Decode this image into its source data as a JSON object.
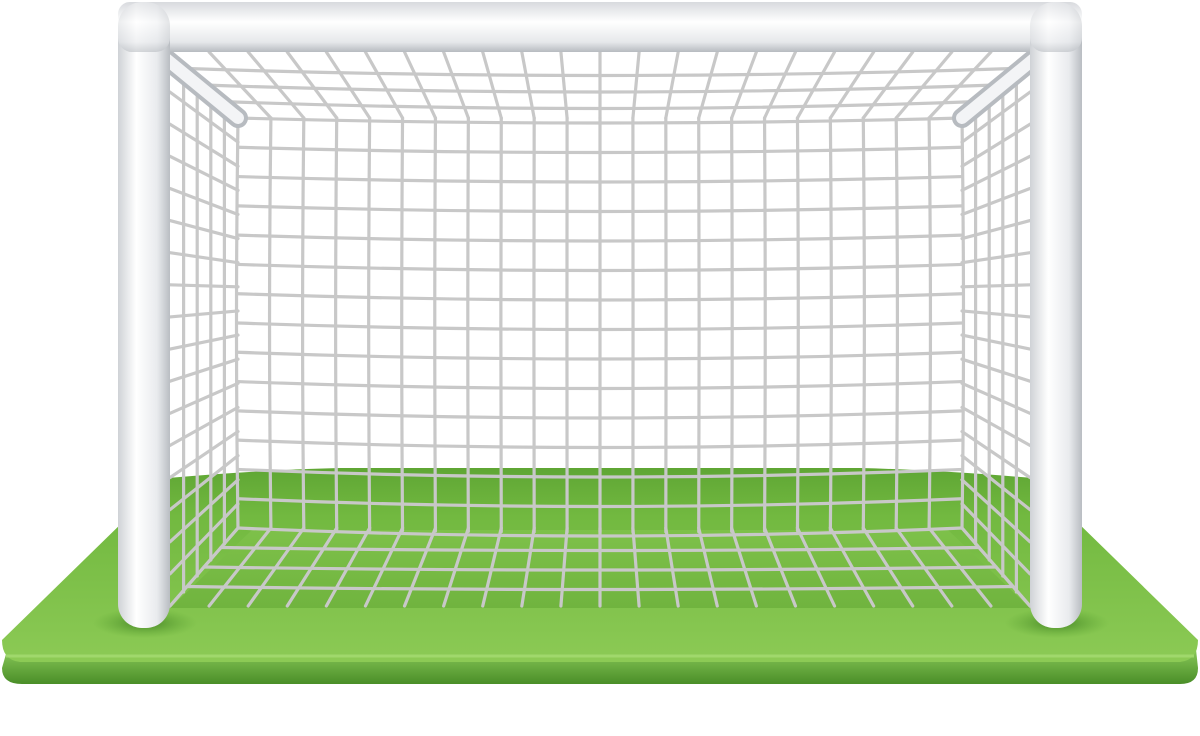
{
  "scene": {
    "subject": "soccer-goal",
    "colors": {
      "grass_light": "#8fcd5a",
      "grass_mid": "#79bf45",
      "grass_dark": "#5aa231",
      "grass_edge": "#4a8e28",
      "post_highlight": "#ffffff",
      "post_shade": "#c9ccd0",
      "net": "#c8c8c8"
    }
  }
}
